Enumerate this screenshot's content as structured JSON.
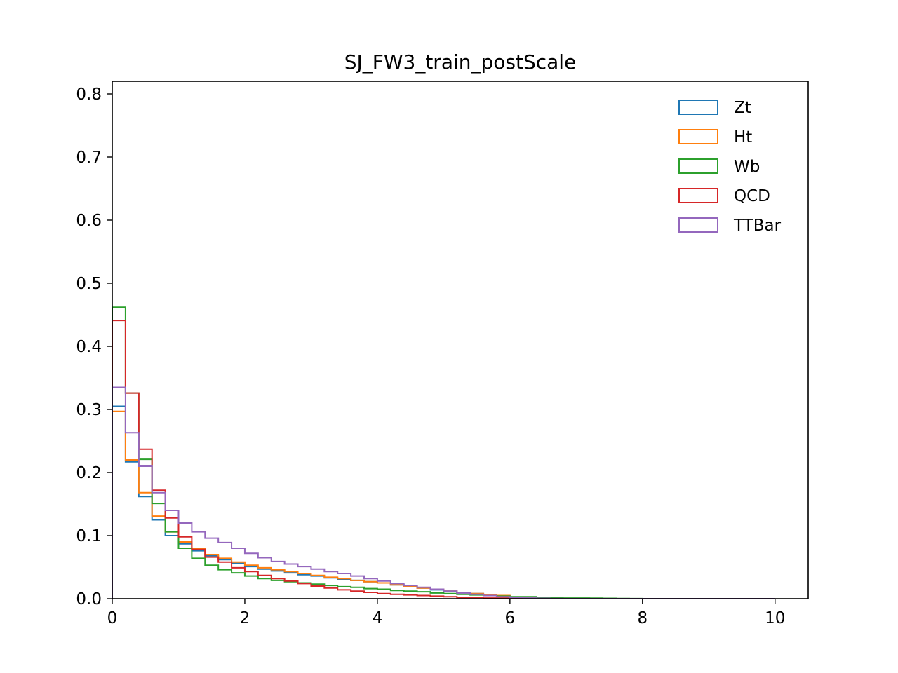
{
  "chart_data": {
    "type": "histogram-step",
    "title": "SJ_FW3_train_postScale",
    "xlabel": "",
    "ylabel": "",
    "xlim": [
      0,
      10.5
    ],
    "ylim": [
      0,
      0.82
    ],
    "xticks": [
      0,
      2,
      4,
      6,
      8,
      10
    ],
    "xtick_labels": [
      "0",
      "2",
      "4",
      "6",
      "8",
      "10"
    ],
    "yticks": [
      0.0,
      0.1,
      0.2,
      0.3,
      0.4,
      0.5,
      0.6,
      0.7,
      0.8
    ],
    "ytick_labels": [
      "0.0",
      "0.1",
      "0.2",
      "0.3",
      "0.4",
      "0.5",
      "0.6",
      "0.7",
      "0.8"
    ],
    "grid": false,
    "legend_position": "upper right",
    "bin_edges_start": 0,
    "bin_width": 0.2,
    "series": [
      {
        "name": "Zt",
        "color": "#1f77b4",
        "values": [
          0.305,
          0.217,
          0.162,
          0.125,
          0.1,
          0.087,
          0.076,
          0.068,
          0.062,
          0.056,
          0.051,
          0.047,
          0.044,
          0.041,
          0.038,
          0.036,
          0.033,
          0.031,
          0.029,
          0.027,
          0.025,
          0.022,
          0.019,
          0.017,
          0.014,
          0.012,
          0.01,
          0.008,
          0.006,
          0.004,
          0.002,
          0.001,
          0.0005,
          0.0002,
          0.0001,
          0,
          0,
          0,
          0,
          0,
          0,
          0,
          0,
          0,
          0,
          0,
          0,
          0,
          0,
          0
        ]
      },
      {
        "name": "Ht",
        "color": "#ff7f0e",
        "values": [
          0.297,
          0.22,
          0.168,
          0.131,
          0.106,
          0.09,
          0.079,
          0.07,
          0.064,
          0.058,
          0.053,
          0.049,
          0.046,
          0.043,
          0.04,
          0.037,
          0.034,
          0.032,
          0.029,
          0.027,
          0.025,
          0.022,
          0.02,
          0.017,
          0.015,
          0.012,
          0.01,
          0.008,
          0.006,
          0.005,
          0.002,
          0.001,
          0.0005,
          0.0002,
          0.0001,
          0,
          0,
          0,
          0,
          0,
          0,
          0,
          0,
          0,
          0,
          0,
          0,
          0,
          0,
          0
        ]
      },
      {
        "name": "Wb",
        "color": "#2ca02c",
        "values": [
          0.462,
          0.326,
          0.221,
          0.151,
          0.106,
          0.08,
          0.064,
          0.053,
          0.046,
          0.041,
          0.036,
          0.032,
          0.029,
          0.027,
          0.025,
          0.023,
          0.021,
          0.019,
          0.018,
          0.016,
          0.015,
          0.013,
          0.012,
          0.011,
          0.009,
          0.008,
          0.007,
          0.006,
          0.005,
          0.004,
          0.003,
          0.003,
          0.002,
          0.002,
          0.001,
          0.001,
          0.0008,
          0.0005,
          0.0003,
          0.0002,
          0,
          0,
          0,
          0,
          0,
          0,
          0,
          0,
          0,
          0
        ]
      },
      {
        "name": "QCD",
        "color": "#d62728",
        "values": [
          0.441,
          0.326,
          0.237,
          0.172,
          0.128,
          0.098,
          0.078,
          0.066,
          0.058,
          0.049,
          0.043,
          0.037,
          0.032,
          0.028,
          0.024,
          0.02,
          0.017,
          0.014,
          0.012,
          0.01,
          0.008,
          0.007,
          0.006,
          0.005,
          0.004,
          0.003,
          0.002,
          0.002,
          0.001,
          0.001,
          0.0005,
          0.0002,
          0.0001,
          0,
          0,
          0,
          0,
          0,
          0,
          0,
          0,
          0,
          0,
          0,
          0,
          0,
          0,
          0,
          0,
          0
        ]
      },
      {
        "name": "TTBar",
        "color": "#9467bd",
        "values": [
          0.335,
          0.263,
          0.21,
          0.168,
          0.14,
          0.12,
          0.106,
          0.096,
          0.089,
          0.08,
          0.072,
          0.065,
          0.059,
          0.055,
          0.051,
          0.047,
          0.043,
          0.04,
          0.036,
          0.032,
          0.028,
          0.024,
          0.021,
          0.018,
          0.015,
          0.012,
          0.009,
          0.007,
          0.005,
          0.003,
          0.002,
          0.001,
          0.0005,
          0.0002,
          0,
          0,
          0,
          0,
          0,
          0,
          0,
          0,
          0,
          0,
          0,
          0,
          0,
          0,
          0,
          0
        ]
      }
    ]
  }
}
